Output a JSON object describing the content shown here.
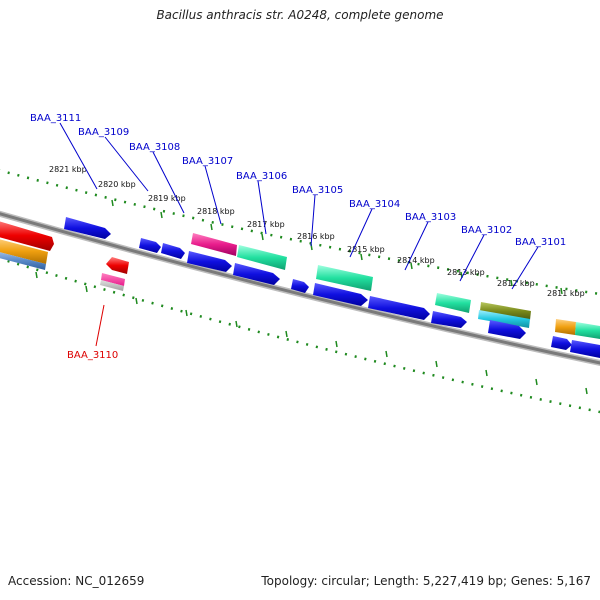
{
  "title": "Bacillus anthracis str. A0248, complete genome",
  "footer": {
    "accession": "Accession: NC_012659",
    "summary": "Topology: circular; Length: 5,227,419 bp; Genes: 5,167"
  },
  "colors": {
    "backbone": "#7a7a7a",
    "tick": "#1f8a1f",
    "label_forward": "#0000cc",
    "label_reverse": "#dd0000",
    "blue": "#1010e0",
    "teal": "#22e0a0",
    "magenta": "#e81c8c",
    "red": "#ee0000",
    "olive": "#7a8a1a",
    "cyan": "#22c8e0",
    "orange": "#f0a010",
    "steel": "#5a8ac8"
  },
  "kbp_labels": [
    "2821 kbp",
    "2820 kbp",
    "2819 kbp",
    "2818 kbp",
    "2817 kbp",
    "2816 kbp",
    "2815 kbp",
    "2814 kbp",
    "2813 kbp",
    "2812 kbp",
    "2811 kbp"
  ],
  "gene_labels": [
    {
      "id": "BAA_3111",
      "strand": "forward"
    },
    {
      "id": "BAA_3109",
      "strand": "forward"
    },
    {
      "id": "BAA_3108",
      "strand": "forward"
    },
    {
      "id": "BAA_3107",
      "strand": "forward"
    },
    {
      "id": "BAA_3106",
      "strand": "forward"
    },
    {
      "id": "BAA_3105",
      "strand": "forward"
    },
    {
      "id": "BAA_3104",
      "strand": "forward"
    },
    {
      "id": "BAA_3103",
      "strand": "forward"
    },
    {
      "id": "BAA_3102",
      "strand": "forward"
    },
    {
      "id": "BAA_3101",
      "strand": "forward"
    },
    {
      "id": "BAA_3110",
      "strand": "reverse"
    }
  ]
}
